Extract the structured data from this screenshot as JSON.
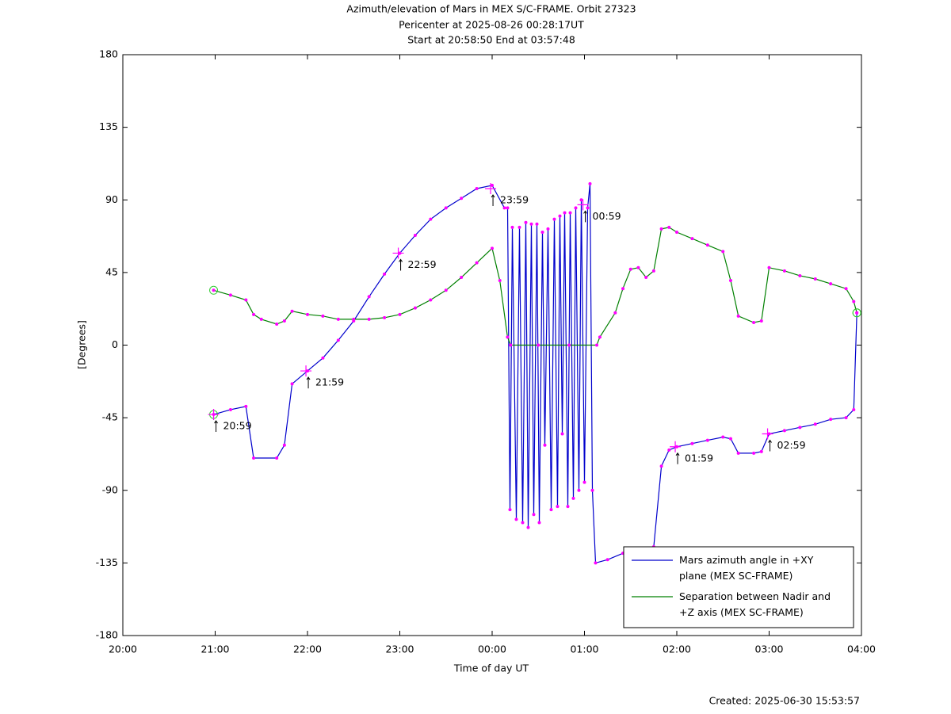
{
  "chart_data": {
    "type": "line",
    "title": [
      "Azimuth/elevation of Mars in MEX S/C-FRAME.  Orbit 27323",
      "Pericenter at 2025-08-26 00:28:17UT",
      "Start at 20:58:50 End at 03:57:48"
    ],
    "xlabel": "Time of day UT",
    "ylabel": "[Degrees]",
    "xlim": [
      "20:00",
      "04:00"
    ],
    "xticks": [
      "20:00",
      "21:00",
      "22:00",
      "23:00",
      "00:00",
      "01:00",
      "02:00",
      "03:00",
      "04:00"
    ],
    "ylim": [
      -180,
      180
    ],
    "yticks": [
      -180,
      -135,
      -90,
      -45,
      0,
      45,
      90,
      135,
      180
    ],
    "legend": "lower right",
    "marker_color": "#ff00ff",
    "series": [
      {
        "name": "Mars azimuth angle in +XY plane (MEX SC-FRAME)",
        "color": "#0000cc",
        "x": [
          "20:59",
          "21:10",
          "21:20",
          "21:25",
          "21:40",
          "21:45",
          "21:50",
          "22:00",
          "22:10",
          "22:20",
          "22:30",
          "22:40",
          "22:50",
          "23:00",
          "23:10",
          "23:20",
          "23:30",
          "23:40",
          "23:50",
          "00:00",
          "00:08",
          "00:10:02",
          "00:11:35",
          "00:13:08",
          "00:15:42",
          "00:17:46",
          "00:19:50",
          "00:21:53",
          "00:23:26",
          "00:25:30",
          "00:27:02",
          "00:29:06",
          "00:30:38",
          "00:32:42",
          "00:34:15",
          "00:36:18",
          "00:38:22",
          "00:40:25",
          "00:42:29",
          "00:44:02",
          "00:45:36",
          "00:47:08",
          "00:49:11",
          "00:50:44",
          "00:52:47",
          "00:54:20",
          "00:56:23",
          "00:57:56",
          "01:00:00",
          "01:02:04",
          "01:03:36",
          "01:05:09",
          "01:07:12",
          "01:15",
          "01:25",
          "01:35",
          "01:40",
          "01:45",
          "01:50",
          "01:55",
          "02:00",
          "02:10",
          "02:20",
          "02:30",
          "02:35",
          "02:40",
          "02:50",
          "02:55",
          "03:00",
          "03:10",
          "03:20",
          "03:30",
          "03:40",
          "03:50",
          "03:55",
          "03:57"
        ],
        "values": [
          -43,
          -40,
          -38,
          -70,
          -70,
          -62,
          -24,
          -16,
          -8,
          3,
          15,
          30,
          44,
          57,
          68,
          78,
          85,
          91,
          97,
          99,
          85,
          85,
          -102,
          73,
          -108,
          73,
          -110,
          76,
          -113,
          75,
          -105,
          75,
          -110,
          70,
          -62,
          72,
          -102,
          78,
          -100,
          80,
          -55,
          82,
          -100,
          82,
          -95,
          85,
          -90,
          90,
          -85,
          85,
          100,
          -90,
          -135,
          -133,
          -129,
          -128,
          -128,
          -125,
          -75,
          -65,
          -63,
          -61,
          -59,
          -57,
          -58,
          -67,
          -67,
          -66,
          -55,
          -53,
          -51,
          -49,
          -46,
          -45,
          -40,
          20
        ]
      },
      {
        "name": "Separation between Nadir and +Z axis (MEX SC-FRAME)",
        "color": "#008000",
        "x": [
          "20:59",
          "21:10",
          "21:20",
          "21:25",
          "21:30",
          "21:40",
          "21:45",
          "21:50",
          "22:00",
          "22:10",
          "22:20",
          "22:30",
          "22:40",
          "22:50",
          "23:00",
          "23:10",
          "23:20",
          "23:30",
          "23:40",
          "23:50",
          "00:00",
          "00:05",
          "00:10",
          "00:12",
          "00:30",
          "00:50",
          "01:08",
          "01:10",
          "01:20",
          "01:25",
          "01:30",
          "01:35",
          "01:40",
          "01:45",
          "01:50",
          "01:55",
          "02:00",
          "02:10",
          "02:20",
          "02:30",
          "02:35",
          "02:40",
          "02:50",
          "02:55",
          "03:00",
          "03:10",
          "03:20",
          "03:30",
          "03:40",
          "03:50",
          "03:55",
          "03:57"
        ],
        "values": [
          34,
          31,
          28,
          19,
          16,
          13,
          15,
          21,
          19,
          18,
          16,
          16,
          16,
          17,
          19,
          23,
          28,
          34,
          42,
          51,
          60,
          40,
          5,
          0,
          0,
          0,
          0,
          5,
          20,
          35,
          47,
          48,
          42,
          46,
          72,
          73,
          70,
          66,
          62,
          58,
          40,
          18,
          14,
          15,
          48,
          46,
          43,
          41,
          38,
          35,
          27,
          20
        ]
      }
    ],
    "annotations": [
      {
        "text": "20:59",
        "x": "20:59",
        "y": -43
      },
      {
        "text": "21:59",
        "x": "21:59",
        "y": -16
      },
      {
        "text": "22:59",
        "x": "22:59",
        "y": 57
      },
      {
        "text": "23:59",
        "x": "23:59",
        "y": 97
      },
      {
        "text": "00:59",
        "x": "00:59",
        "y": 87
      },
      {
        "text": "01:59",
        "x": "01:59",
        "y": -63
      },
      {
        "text": "02:59",
        "x": "02:59",
        "y": -55
      }
    ],
    "footer": "Created: 2025-06-30 15:53:57"
  }
}
